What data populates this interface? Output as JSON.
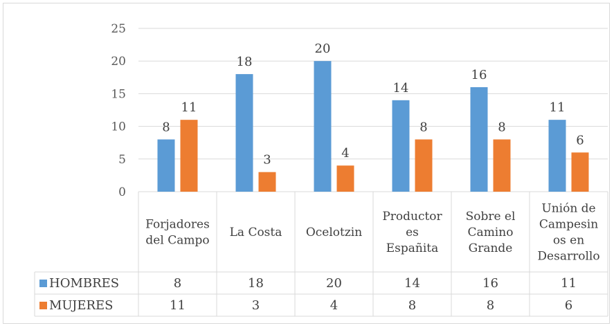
{
  "colors": {
    "hombres": "#5b9bd5",
    "mujeres": "#ed7d31",
    "grid": "#d9d9d9",
    "text": "#404040"
  },
  "chart_data": {
    "type": "bar",
    "title": "",
    "xlabel": "",
    "ylabel": "",
    "ylim": [
      0,
      25
    ],
    "yticks": [
      0,
      5,
      10,
      15,
      20,
      25
    ],
    "grid": true,
    "legend": "data-table",
    "categories": [
      [
        "Forjadores",
        "del Campo"
      ],
      [
        "La Costa"
      ],
      [
        "Ocelotzin"
      ],
      [
        "Productor",
        "es",
        "Españita"
      ],
      [
        "Sobre el",
        "Camino",
        "Grande"
      ],
      [
        "Unión de",
        "Campesin",
        "os en",
        "Desarrollo"
      ]
    ],
    "series": [
      {
        "name": "HOMBRES",
        "values": [
          8,
          18,
          20,
          14,
          16,
          11
        ]
      },
      {
        "name": "MUJERES",
        "values": [
          11,
          3,
          4,
          8,
          8,
          6
        ]
      }
    ]
  }
}
